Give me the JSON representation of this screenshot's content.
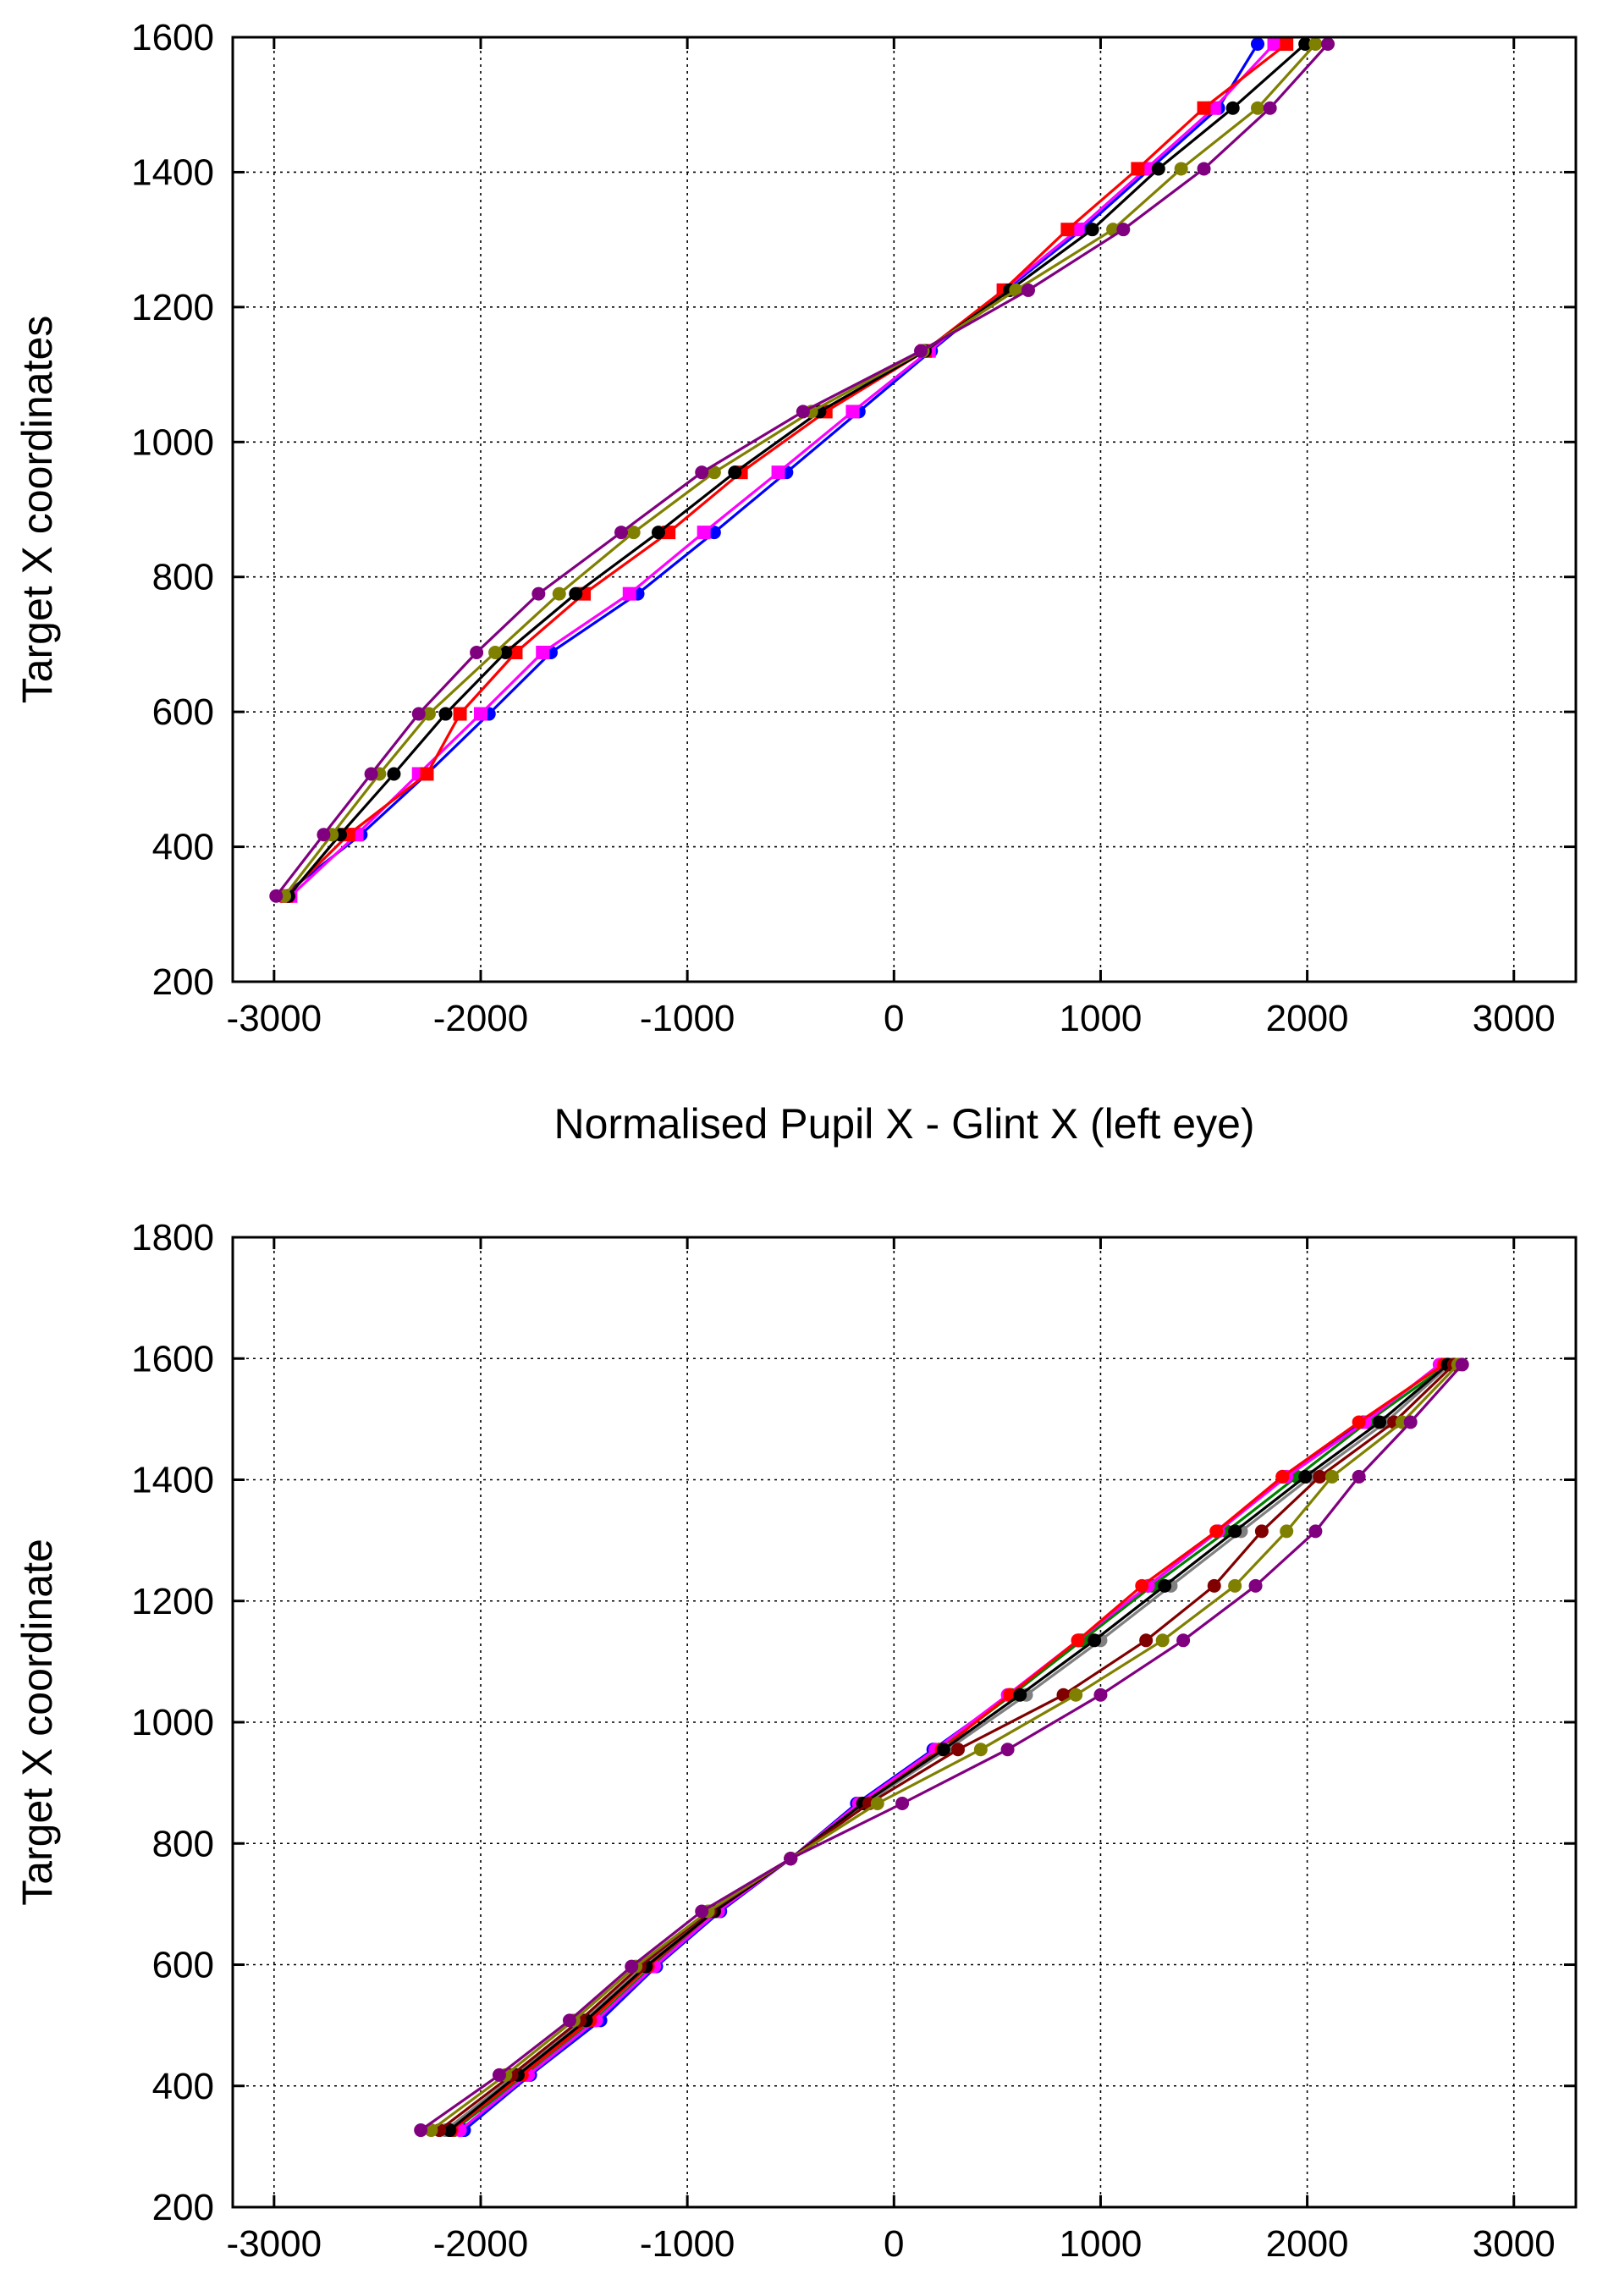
{
  "chart_data": [
    {
      "type": "line",
      "title": "",
      "xlabel": "Normalised Pupil X - Glint X (left eye)",
      "ylabel": "Target X coordinates",
      "xlim": [
        -3200,
        3300
      ],
      "ylim": [
        200,
        1600
      ],
      "xticks": [
        -3000,
        -2000,
        -1000,
        0,
        1000,
        2000,
        3000
      ],
      "yticks": [
        200,
        400,
        600,
        800,
        1000,
        1200,
        1400,
        1600
      ],
      "xtick_labels": [
        "-3000",
        "-2000",
        "-1000",
        "0",
        "1000",
        "2000",
        "3000"
      ],
      "ytick_labels": [
        "200",
        "400",
        "600",
        "800",
        "1000",
        "1200",
        "1400",
        "1600"
      ],
      "grid": true,
      "legend": "none",
      "series": [
        {
          "color": "#0000ff",
          "marker": "circle",
          "x": [
            -2960,
            -2580,
            -2260,
            -1960,
            -1660,
            -1240,
            -870,
            -520,
            -170,
            180,
            540,
            910,
            1240,
            1570,
            1760
          ],
          "y": [
            327,
            418,
            508,
            597,
            688,
            775,
            866,
            955,
            1045,
            1135,
            1225,
            1315,
            1405,
            1495,
            1590
          ]
        },
        {
          "color": "#ff00ff",
          "marker": "square",
          "x": [
            -2920,
            -2600,
            -2300,
            -2000,
            -1700,
            -1280,
            -920,
            -560,
            -200,
            170,
            530,
            890,
            1220,
            1550,
            1840
          ],
          "y": [
            327,
            418,
            508,
            597,
            688,
            775,
            866,
            955,
            1045,
            1135,
            1225,
            1315,
            1405,
            1495,
            1590
          ]
        },
        {
          "color": "#ff0000",
          "marker": "square",
          "x": [
            -2940,
            -2640,
            -2260,
            -2100,
            -1830,
            -1500,
            -1090,
            -740,
            -330,
            150,
            530,
            840,
            1180,
            1500,
            1900
          ],
          "y": [
            327,
            418,
            508,
            597,
            688,
            775,
            866,
            955,
            1045,
            1135,
            1225,
            1315,
            1405,
            1495,
            1590
          ]
        },
        {
          "color": "#000000",
          "marker": "circle",
          "x": [
            -2930,
            -2680,
            -2420,
            -2170,
            -1880,
            -1540,
            -1140,
            -770,
            -360,
            150,
            560,
            960,
            1280,
            1640,
            1990
          ],
          "y": [
            327,
            418,
            508,
            597,
            688,
            775,
            866,
            955,
            1045,
            1135,
            1225,
            1315,
            1405,
            1495,
            1590
          ]
        },
        {
          "color": "#808000",
          "marker": "circle",
          "x": [
            -2950,
            -2720,
            -2490,
            -2250,
            -1930,
            -1620,
            -1260,
            -870,
            -400,
            140,
            590,
            1060,
            1390,
            1760,
            2040
          ],
          "y": [
            327,
            418,
            508,
            597,
            688,
            775,
            866,
            955,
            1045,
            1135,
            1225,
            1315,
            1405,
            1495,
            1590
          ]
        },
        {
          "color": "#800080",
          "marker": "circle",
          "x": [
            -2990,
            -2760,
            -2530,
            -2300,
            -2020,
            -1720,
            -1320,
            -930,
            -440,
            130,
            650,
            1110,
            1500,
            1820,
            2100
          ],
          "y": [
            327,
            418,
            508,
            597,
            688,
            775,
            866,
            955,
            1045,
            1135,
            1225,
            1315,
            1405,
            1495,
            1590
          ]
        }
      ]
    },
    {
      "type": "line",
      "title": "",
      "xlabel": "",
      "ylabel": "Target X coordinate",
      "xlim": [
        -3200,
        3300
      ],
      "ylim": [
        200,
        1800
      ],
      "xticks": [
        -3000,
        -2000,
        -1000,
        0,
        1000,
        2000,
        3000
      ],
      "yticks": [
        200,
        400,
        600,
        800,
        1000,
        1200,
        1400,
        1600,
        1800
      ],
      "xtick_labels": [
        "-3000",
        "-2000",
        "-1000",
        "0",
        "1000",
        "2000",
        "3000"
      ],
      "ytick_labels": [
        "200",
        "400",
        "600",
        "800",
        "1000",
        "1200",
        "1400",
        "1600",
        "1800"
      ],
      "grid": true,
      "legend": "none",
      "series": [
        {
          "color": "#0000ff",
          "marker": "circle",
          "x": [
            -2080,
            -1760,
            -1420,
            -1150,
            -840,
            -500,
            -180,
            190,
            560,
            900,
            1230,
            1570,
            1880,
            2270,
            2650
          ],
          "y": [
            327,
            418,
            508,
            597,
            688,
            775,
            866,
            955,
            1045,
            1135,
            1225,
            1315,
            1405,
            1495,
            1590
          ]
        },
        {
          "color": "#008000",
          "marker": "circle",
          "x": [
            -2130,
            -1780,
            -1450,
            -1170,
            -860,
            -500,
            -170,
            220,
            570,
            910,
            1250,
            1610,
            1950,
            2290,
            2680
          ],
          "y": [
            327,
            418,
            508,
            597,
            688,
            775,
            866,
            955,
            1045,
            1135,
            1225,
            1315,
            1405,
            1495,
            1590
          ]
        },
        {
          "color": "#ff00ff",
          "marker": "circle",
          "x": [
            -2100,
            -1770,
            -1440,
            -1160,
            -850,
            -500,
            -170,
            200,
            550,
            890,
            1230,
            1570,
            1900,
            2280,
            2640
          ],
          "y": [
            327,
            418,
            508,
            597,
            688,
            775,
            866,
            955,
            1045,
            1135,
            1225,
            1315,
            1405,
            1495,
            1590
          ]
        },
        {
          "color": "#ff0000",
          "marker": "circle",
          "x": [
            -2140,
            -1800,
            -1470,
            -1190,
            -870,
            -500,
            -150,
            230,
            560,
            890,
            1200,
            1560,
            1880,
            2250,
            2660
          ],
          "y": [
            327,
            418,
            508,
            597,
            688,
            775,
            866,
            955,
            1045,
            1135,
            1225,
            1315,
            1405,
            1495,
            1590
          ]
        },
        {
          "color": "#808080",
          "marker": "circle",
          "x": [
            -2170,
            -1830,
            -1500,
            -1210,
            -880,
            -500,
            -140,
            260,
            640,
            1000,
            1340,
            1680,
            2020,
            2380,
            2690
          ],
          "y": [
            327,
            418,
            508,
            597,
            688,
            775,
            866,
            955,
            1045,
            1135,
            1225,
            1315,
            1405,
            1495,
            1590
          ]
        },
        {
          "color": "#000000",
          "marker": "circle",
          "x": [
            -2150,
            -1820,
            -1490,
            -1200,
            -870,
            -500,
            -150,
            240,
            610,
            970,
            1310,
            1650,
            1990,
            2350,
            2680
          ],
          "y": [
            327,
            418,
            508,
            597,
            688,
            775,
            866,
            955,
            1045,
            1135,
            1225,
            1315,
            1405,
            1495,
            1590
          ]
        },
        {
          "color": "#800000",
          "marker": "circle",
          "x": [
            -2200,
            -1850,
            -1520,
            -1230,
            -890,
            -500,
            -120,
            310,
            820,
            1220,
            1550,
            1780,
            2060,
            2420,
            2710
          ],
          "y": [
            327,
            418,
            508,
            597,
            688,
            775,
            866,
            955,
            1045,
            1135,
            1225,
            1315,
            1405,
            1495,
            1590
          ]
        },
        {
          "color": "#808000",
          "marker": "circle",
          "x": [
            -2240,
            -1880,
            -1550,
            -1250,
            -900,
            -500,
            -80,
            420,
            880,
            1300,
            1650,
            1900,
            2120,
            2460,
            2730
          ],
          "y": [
            327,
            418,
            508,
            597,
            688,
            775,
            866,
            955,
            1045,
            1135,
            1225,
            1315,
            1405,
            1495,
            1590
          ]
        },
        {
          "color": "#800080",
          "marker": "circle",
          "x": [
            -2290,
            -1910,
            -1570,
            -1270,
            -930,
            -500,
            40,
            550,
            1000,
            1400,
            1750,
            2040,
            2250,
            2500,
            2750
          ],
          "y": [
            327,
            418,
            508,
            597,
            688,
            775,
            866,
            955,
            1045,
            1135,
            1225,
            1315,
            1405,
            1495,
            1590
          ]
        }
      ]
    }
  ]
}
